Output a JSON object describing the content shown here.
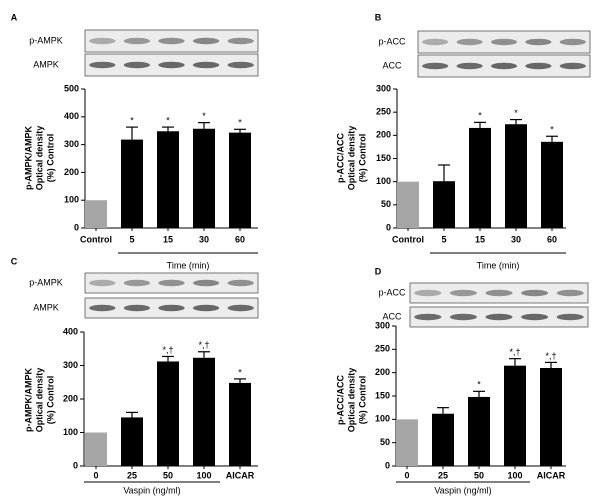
{
  "chart_data": [
    {
      "type": "bar",
      "panel": "A",
      "blot_labels": [
        "p-AMPK",
        "AMPK"
      ],
      "ylabel": [
        "p-AMPK/AMPK",
        "Optical density",
        "(%) Control"
      ],
      "xlabel": "Time (min)",
      "categories": [
        "Control",
        "5",
        "15",
        "30",
        "60"
      ],
      "values": [
        100,
        318,
        348,
        357,
        343
      ],
      "errors": [
        0,
        45,
        15,
        22,
        12
      ],
      "bar_labels": [
        null,
        "*",
        "*",
        "*",
        "*"
      ],
      "colors": [
        "#a6a6a6",
        "#000000",
        "#000000",
        "#000000",
        "#000000"
      ],
      "ylim": [
        0,
        500
      ],
      "yticks": [
        0,
        100,
        200,
        300,
        400,
        500
      ]
    },
    {
      "type": "bar",
      "panel": "B",
      "blot_labels": [
        "p-ACC",
        "ACC"
      ],
      "ylabel": [
        "p-ACC/ACC",
        "Optical density",
        "(%) Control"
      ],
      "xlabel": "Time (min)",
      "categories": [
        "Control",
        "5",
        "15",
        "30",
        "60"
      ],
      "values": [
        100,
        101,
        216,
        224,
        186
      ],
      "errors": [
        0,
        35,
        12,
        10,
        12
      ],
      "bar_labels": [
        null,
        null,
        "*",
        "*",
        "*"
      ],
      "colors": [
        "#a6a6a6",
        "#000000",
        "#000000",
        "#000000",
        "#000000"
      ],
      "ylim": [
        0,
        300
      ],
      "yticks": [
        0,
        50,
        100,
        150,
        200,
        250,
        300
      ]
    },
    {
      "type": "bar",
      "panel": "C",
      "blot_labels": [
        "p-AMPK",
        "AMPK"
      ],
      "ylabel": [
        "p-AMPK/AMPK",
        "Optical density",
        "(%) Control"
      ],
      "xlabel": "Vaspin (ng/ml)",
      "categories": [
        "0",
        "25",
        "50",
        "100",
        "AICAR"
      ],
      "values": [
        100,
        145,
        312,
        323,
        248
      ],
      "errors": [
        0,
        15,
        15,
        18,
        12
      ],
      "bar_labels": [
        null,
        null,
        "*,†",
        "*,†",
        "*"
      ],
      "colors": [
        "#a6a6a6",
        "#000000",
        "#000000",
        "#000000",
        "#000000"
      ],
      "ylim": [
        0,
        400
      ],
      "yticks": [
        0,
        100,
        200,
        300,
        400
      ]
    },
    {
      "type": "bar",
      "panel": "D",
      "blot_labels": [
        "p-ACC",
        "ACC"
      ],
      "ylabel": [
        "p-ACC/ACC",
        "Optical density",
        "(%) Control"
      ],
      "xlabel": "Vaspin (ng/ml)",
      "categories": [
        "0",
        "25",
        "50",
        "100",
        "AICAR"
      ],
      "values": [
        100,
        112,
        148,
        215,
        210
      ],
      "errors": [
        0,
        13,
        12,
        15,
        12
      ],
      "bar_labels": [
        null,
        null,
        "*",
        "*,†",
        "*,†"
      ],
      "colors": [
        "#a6a6a6",
        "#000000",
        "#000000",
        "#000000",
        "#000000"
      ],
      "ylim": [
        0,
        300
      ],
      "yticks": [
        0,
        50,
        100,
        150,
        200,
        250,
        300
      ]
    }
  ]
}
